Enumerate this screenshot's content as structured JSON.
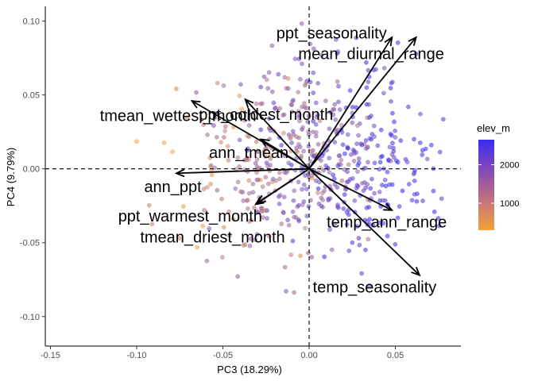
{
  "chart_data": {
    "type": "scatter",
    "xlabel": "PC3 (18.29%)",
    "ylabel": "PC4 (9.79%)",
    "xlim": [
      -0.153,
      0.088
    ],
    "ylim": [
      -0.12,
      0.11
    ],
    "x_ticks": [
      -0.15,
      -0.1,
      -0.05,
      0.0,
      0.05
    ],
    "x_tick_labels": [
      "-0.15",
      "-0.10",
      "-0.05",
      "0.00",
      "0.05"
    ],
    "y_ticks": [
      -0.1,
      -0.05,
      0.0,
      0.05,
      0.1
    ],
    "y_tick_labels": [
      "-0.10",
      "-0.05",
      "0.00",
      "0.05",
      "0.10"
    ],
    "grid": false,
    "reference_lines": {
      "x": 0,
      "y": 0,
      "style": "dashed"
    },
    "color_scale": {
      "name": "elev_m",
      "low_color": "#F5A13B",
      "high_color": "#3A2BF2",
      "min": 300,
      "max": 2650,
      "ticks": [
        1000,
        2000
      ],
      "tick_labels": [
        "1000",
        "2000"
      ],
      "legend_position": "right"
    },
    "loadings": [
      {
        "name": "ppt_seasonality",
        "x": 0.048,
        "y": 0.089
      },
      {
        "name": "mean_diurnal_range",
        "x": 0.062,
        "y": 0.089
      },
      {
        "name": "tmean_wettest_month",
        "x": -0.068,
        "y": 0.046
      },
      {
        "name": "ppt_coldest_month",
        "x": -0.037,
        "y": 0.047
      },
      {
        "name": "ann_tmean",
        "x": -0.028,
        "y": 0.02
      },
      {
        "name": "ann_ppt",
        "x": -0.077,
        "y": -0.003
      },
      {
        "name": "ppt_warmest_month",
        "x": -0.031,
        "y": -0.024
      },
      {
        "name": "tmean_driest_month",
        "x": -0.03,
        "y": -0.023
      },
      {
        "name": "temp_ann_range",
        "x": 0.048,
        "y": -0.028
      },
      {
        "name": "temp_seasonality",
        "x": 0.064,
        "y": -0.072
      }
    ],
    "loading_label_positions": {
      "ppt_seasonality": [
        0.013,
        0.092
      ],
      "mean_diurnal_range": [
        0.036,
        0.078
      ],
      "tmean_wettest_month": [
        -0.076,
        0.036
      ],
      "ppt_coldest_month": [
        -0.025,
        0.037
      ],
      "ann_tmean": [
        -0.035,
        0.011
      ],
      "ann_ppt": [
        -0.079,
        -0.012
      ],
      "ppt_warmest_month": [
        -0.069,
        -0.032
      ],
      "tmean_driest_month": [
        -0.056,
        -0.046
      ],
      "temp_ann_range": [
        0.045,
        -0.036
      ],
      "temp_seasonality": [
        0.038,
        -0.08
      ]
    }
  }
}
